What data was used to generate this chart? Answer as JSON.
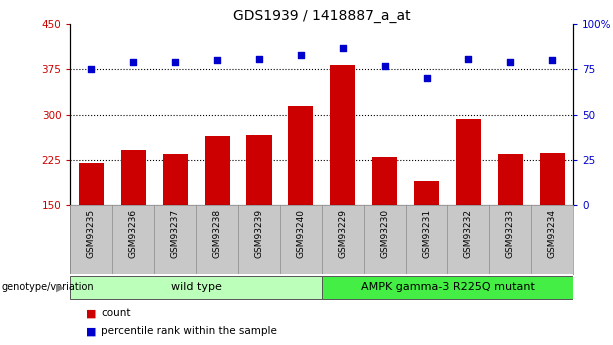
{
  "title": "GDS1939 / 1418887_a_at",
  "samples": [
    "GSM93235",
    "GSM93236",
    "GSM93237",
    "GSM93238",
    "GSM93239",
    "GSM93240",
    "GSM93229",
    "GSM93230",
    "GSM93231",
    "GSM93232",
    "GSM93233",
    "GSM93234"
  ],
  "counts": [
    220,
    242,
    235,
    264,
    267,
    315,
    383,
    230,
    190,
    293,
    235,
    237
  ],
  "percentiles": [
    75,
    79,
    79,
    80,
    81,
    83,
    87,
    77,
    70,
    81,
    79,
    80
  ],
  "ylim_left": [
    150,
    450
  ],
  "ylim_right": [
    0,
    100
  ],
  "yticks_left": [
    150,
    225,
    300,
    375,
    450
  ],
  "yticks_right": [
    0,
    25,
    50,
    75,
    100
  ],
  "yticklabels_right": [
    "0",
    "25",
    "50",
    "75",
    "100%"
  ],
  "bar_color": "#cc0000",
  "dot_color": "#0000cc",
  "bg_color": "#ffffff",
  "sample_bg": "#c8c8c8",
  "groups": [
    {
      "label": "wild type",
      "start": 0,
      "end": 6,
      "color": "#bbffbb"
    },
    {
      "label": "AMPK gamma-3 R225Q mutant",
      "start": 6,
      "end": 12,
      "color": "#44ee44"
    }
  ],
  "genotype_label": "genotype/variation",
  "legend_items": [
    {
      "label": "count",
      "color": "#cc0000"
    },
    {
      "label": "percentile rank within the sample",
      "color": "#0000cc"
    }
  ],
  "title_fontsize": 10,
  "tick_fontsize": 7.5,
  "sample_fontsize": 6.5,
  "group_fontsize": 8,
  "legend_fontsize": 7.5,
  "hgrid_values": [
    225,
    300,
    375
  ]
}
